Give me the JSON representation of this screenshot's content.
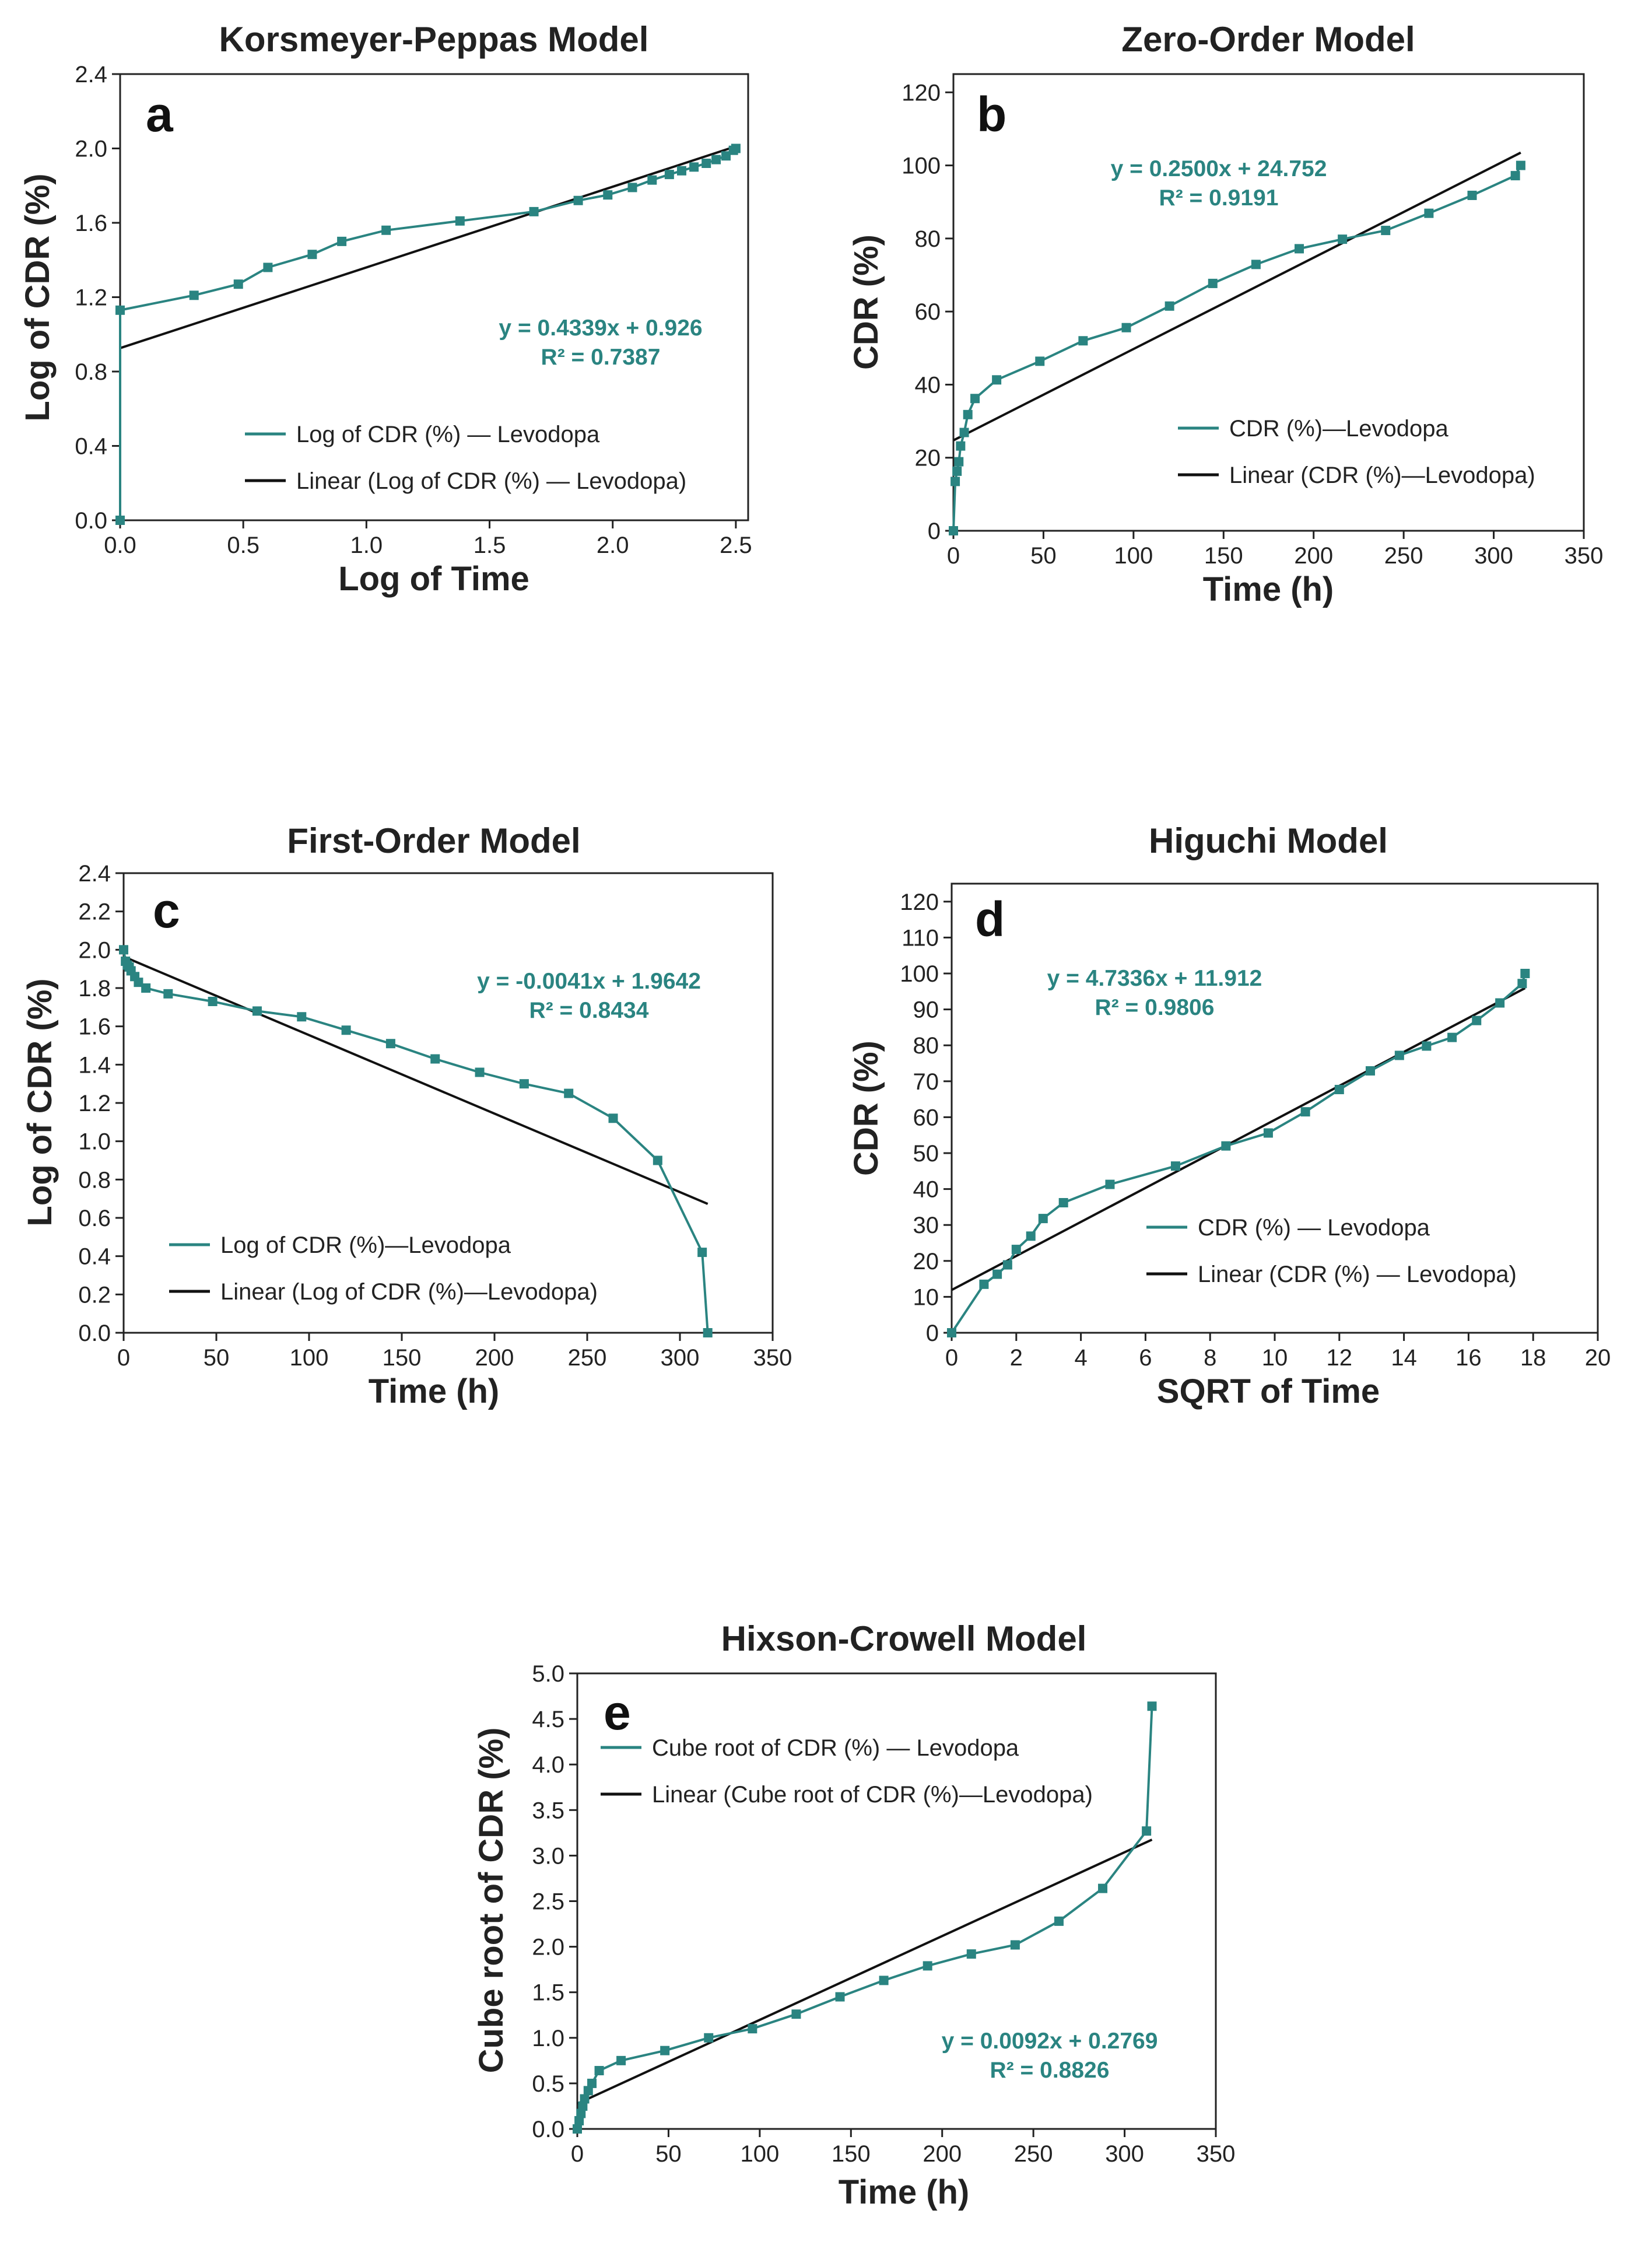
{
  "colors": {
    "series": "#2a8481",
    "fit": "#111111",
    "axis": "#222222"
  },
  "chart_data": [
    {
      "type": "line",
      "panel": "a",
      "title": "Korsmeyer-Peppas Model",
      "xlabel": "Log of Time",
      "ylabel": "Log of CDR (%)",
      "xlim": [
        0,
        2.55
      ],
      "ylim": [
        0,
        2.4
      ],
      "xticks": [
        "0.0",
        "0.5",
        "1.0",
        "1.5",
        "2.0",
        "2.5"
      ],
      "yticks": [
        "0.0",
        "0.4",
        "0.8",
        "1.2",
        "1.6",
        "2.0",
        "2.4"
      ],
      "x": [
        0,
        0,
        0.3,
        0.48,
        0.6,
        0.78,
        0.9,
        1.08,
        1.38,
        1.68,
        1.86,
        1.98,
        2.08,
        2.16,
        2.23,
        2.28,
        2.33,
        2.38,
        2.42,
        2.46,
        2.49,
        2.5
      ],
      "series": [
        {
          "name": "Log of CDR (%) — Levodopa",
          "values": [
            0,
            1.13,
            1.21,
            1.27,
            1.36,
            1.43,
            1.5,
            1.56,
            1.61,
            1.66,
            1.72,
            1.75,
            1.79,
            1.83,
            1.86,
            1.88,
            1.9,
            1.92,
            1.94,
            1.96,
            1.99,
            2.0
          ]
        },
        {
          "name": "Linear (Log of CDR (%) — Levodopa)",
          "fit": true,
          "x": [
            0,
            2.5
          ],
          "values": [
            0.926,
            2.011
          ]
        }
      ],
      "equation": "y = 0.4339x + 0.926",
      "r2": "R² = 0.7387",
      "legend": [
        "Log of CDR (%) — Levodopa",
        "Linear (Log of CDR (%) — Levodopa)"
      ]
    },
    {
      "type": "line",
      "panel": "b",
      "title": "Zero-Order Model",
      "xlabel": "Time (h)",
      "ylabel": "CDR (%)",
      "xlim": [
        0,
        350
      ],
      "ylim": [
        0,
        125
      ],
      "xticks": [
        "0",
        "50",
        "100",
        "150",
        "200",
        "250",
        "300",
        "350"
      ],
      "yticks": [
        "0",
        "20",
        "40",
        "60",
        "80",
        "100",
        "120"
      ],
      "x": [
        0,
        1,
        2,
        3,
        4,
        6,
        8,
        12,
        24,
        48,
        72,
        96,
        120,
        144,
        168,
        192,
        216,
        240,
        264,
        288,
        312,
        315
      ],
      "series": [
        {
          "name": "CDR (%)—Levodopa",
          "values": [
            0,
            13.5,
            16.3,
            18.9,
            23.2,
            26.9,
            31.8,
            36.2,
            41.3,
            46.4,
            52,
            55.6,
            61.5,
            67.7,
            72.9,
            77.2,
            79.8,
            82.2,
            86.9,
            91.8,
            97.2,
            100
          ]
        },
        {
          "name": "Linear (CDR (%)—Levodopa)",
          "fit": true,
          "x": [
            0,
            315
          ],
          "values": [
            24.752,
            103.5
          ]
        }
      ],
      "equation": "y = 0.2500x + 24.752",
      "r2": "R² = 0.9191",
      "legend": [
        "CDR (%)—Levodopa",
        "Linear (CDR (%)—Levodopa)"
      ]
    },
    {
      "type": "line",
      "panel": "c",
      "title": "First-Order Model",
      "xlabel": "Time (h)",
      "ylabel": "Log of CDR (%)",
      "xlim": [
        0,
        350
      ],
      "ylim": [
        0,
        2.4
      ],
      "xticks": [
        "0",
        "50",
        "100",
        "150",
        "200",
        "250",
        "300",
        "350"
      ],
      "yticks": [
        "0.0",
        "0.2",
        "0.4",
        "0.6",
        "0.8",
        "1.0",
        "1.2",
        "1.4",
        "1.6",
        "1.8",
        "2.0",
        "2.2",
        "2.4"
      ],
      "x": [
        0,
        1,
        2,
        3,
        4,
        6,
        8,
        12,
        24,
        48,
        72,
        96,
        120,
        144,
        168,
        192,
        216,
        240,
        264,
        288,
        312,
        315
      ],
      "series": [
        {
          "name": "Log of CDR (%)—Levodopa",
          "values": [
            2.0,
            1.94,
            1.92,
            1.91,
            1.89,
            1.86,
            1.83,
            1.8,
            1.77,
            1.73,
            1.68,
            1.65,
            1.58,
            1.51,
            1.43,
            1.36,
            1.3,
            1.25,
            1.12,
            0.9,
            0.42,
            0
          ]
        },
        {
          "name": "Linear (Log of CDR (%)—Levodopa)",
          "fit": true,
          "x": [
            0,
            315
          ],
          "values": [
            1.9642,
            0.673
          ]
        }
      ],
      "equation": "y = -0.0041x + 1.9642",
      "r2": "R² = 0.8434",
      "legend": [
        "Log of CDR (%)—Levodopa",
        "Linear (Log of CDR (%)—Levodopa)"
      ]
    },
    {
      "type": "line",
      "panel": "d",
      "title": "Higuchi Model",
      "xlabel": "SQRT of Time",
      "ylabel": "CDR (%)",
      "xlim": [
        0,
        20
      ],
      "ylim": [
        0,
        125
      ],
      "xticks": [
        "0",
        "2",
        "4",
        "6",
        "8",
        "10",
        "12",
        "14",
        "16",
        "18",
        "20"
      ],
      "yticks": [
        "0",
        "10",
        "20",
        "30",
        "40",
        "50",
        "60",
        "70",
        "80",
        "90",
        "100",
        "110",
        "120"
      ],
      "x": [
        0,
        1,
        1.41,
        1.73,
        2,
        2.45,
        2.83,
        3.46,
        4.9,
        6.93,
        8.49,
        9.8,
        10.95,
        12,
        12.96,
        13.86,
        14.7,
        15.49,
        16.25,
        16.97,
        17.66,
        17.75
      ],
      "series": [
        {
          "name": "CDR (%) — Levodopa",
          "values": [
            0,
            13.5,
            16.3,
            18.9,
            23.2,
            26.9,
            31.8,
            36.2,
            41.3,
            46.4,
            52,
            55.6,
            61.5,
            67.7,
            72.9,
            77.2,
            79.8,
            82.2,
            86.9,
            91.8,
            97.2,
            100
          ]
        },
        {
          "name": "Linear (CDR (%) — Levodopa)",
          "fit": true,
          "x": [
            0,
            17.75
          ],
          "values": [
            11.912,
            95.93
          ]
        }
      ],
      "equation": "y = 4.7336x + 11.912",
      "r2": "R² = 0.9806",
      "legend": [
        "CDR (%) — Levodopa",
        "Linear (CDR (%) — Levodopa)"
      ]
    },
    {
      "type": "line",
      "panel": "e",
      "title": "Hixson-Crowell Model",
      "xlabel": "Time (h)",
      "ylabel": "Cube root of CDR (%)",
      "xlim": [
        0,
        350
      ],
      "ylim": [
        0,
        5.0
      ],
      "xticks": [
        "0",
        "50",
        "100",
        "150",
        "200",
        "250",
        "300",
        "350"
      ],
      "yticks": [
        "0.0",
        "0.5",
        "1.0",
        "1.5",
        "2.0",
        "2.5",
        "3.0",
        "3.5",
        "4.0",
        "4.5",
        "5.0"
      ],
      "x": [
        0,
        1,
        2,
        3,
        4,
        6,
        8,
        12,
        24,
        48,
        72,
        96,
        120,
        144,
        168,
        192,
        216,
        240,
        264,
        288,
        312,
        315
      ],
      "series": [
        {
          "name": "Cube root of CDR (%) — Levodopa",
          "values": [
            0,
            0.09,
            0.17,
            0.25,
            0.33,
            0.42,
            0.5,
            0.64,
            0.75,
            0.86,
            1.0,
            1.1,
            1.26,
            1.45,
            1.63,
            1.79,
            1.92,
            2.02,
            2.28,
            2.64,
            3.27,
            4.64
          ]
        },
        {
          "name": "Linear (Cube root of CDR (%)—Levodopa)",
          "fit": true,
          "x": [
            0,
            315
          ],
          "values": [
            0.2769,
            3.175
          ]
        }
      ],
      "equation": "y = 0.0092x + 0.2769",
      "r2": "R² = 0.8826",
      "legend": [
        "Cube root of CDR (%) — Levodopa",
        "Linear (Cube root of CDR (%)—Levodopa)"
      ]
    }
  ]
}
